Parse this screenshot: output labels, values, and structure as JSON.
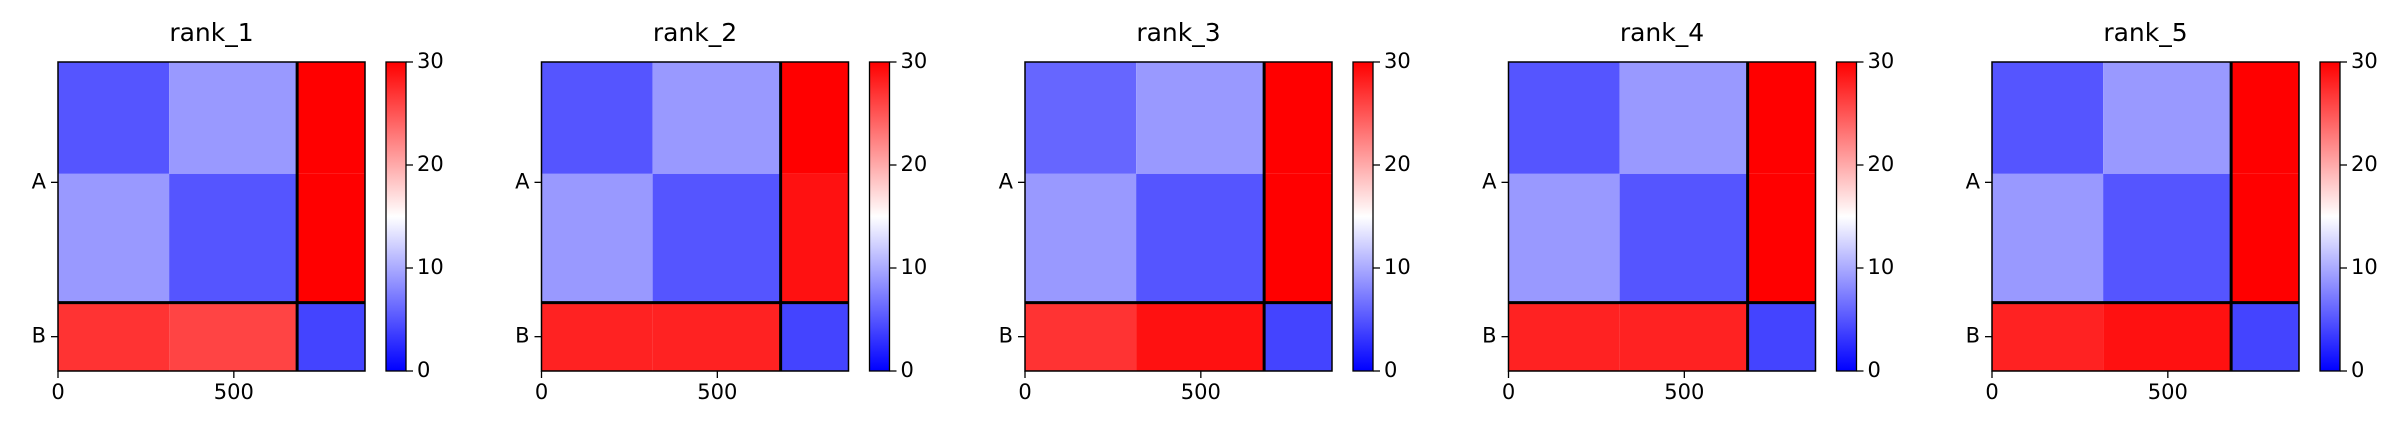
{
  "chart_data": [
    {
      "type": "heatmap",
      "title": "rank_1",
      "x_edges": [
        0,
        316,
        680,
        873
      ],
      "matrix": [
        [
          5,
          9,
          30
        ],
        [
          9,
          5,
          30
        ],
        [
          27,
          26,
          4
        ]
      ],
      "chain_breaks": [
        680
      ],
      "xlim": [
        0,
        873
      ],
      "ylim": [
        873,
        0
      ],
      "xticks": [
        0,
        500
      ],
      "yticks": [
        {
          "value": 340,
          "label": "A"
        },
        {
          "value": 776,
          "label": "B"
        }
      ],
      "clim": [
        0,
        30
      ],
      "cticks": [
        0,
        10,
        20,
        30
      ],
      "colormap": [
        "#0000ff",
        "#ffffff",
        "#ff0000"
      ]
    },
    {
      "type": "heatmap",
      "title": "rank_2",
      "x_edges": [
        0,
        316,
        680,
        873
      ],
      "matrix": [
        [
          5,
          9,
          30
        ],
        [
          9,
          5,
          29
        ],
        [
          28,
          28,
          4
        ]
      ],
      "chain_breaks": [
        680
      ],
      "xlim": [
        0,
        873
      ],
      "ylim": [
        873,
        0
      ],
      "xticks": [
        0,
        500
      ],
      "yticks": [
        {
          "value": 340,
          "label": "A"
        },
        {
          "value": 776,
          "label": "B"
        }
      ],
      "clim": [
        0,
        30
      ],
      "cticks": [
        0,
        10,
        20,
        30
      ],
      "colormap": [
        "#0000ff",
        "#ffffff",
        "#ff0000"
      ]
    },
    {
      "type": "heatmap",
      "title": "rank_3",
      "x_edges": [
        0,
        316,
        680,
        873
      ],
      "matrix": [
        [
          6,
          9,
          30
        ],
        [
          9,
          5,
          30
        ],
        [
          27,
          29,
          4
        ]
      ],
      "chain_breaks": [
        680
      ],
      "xlim": [
        0,
        873
      ],
      "ylim": [
        873,
        0
      ],
      "xticks": [
        0,
        500
      ],
      "yticks": [
        {
          "value": 340,
          "label": "A"
        },
        {
          "value": 776,
          "label": "B"
        }
      ],
      "clim": [
        0,
        30
      ],
      "cticks": [
        0,
        10,
        20,
        30
      ],
      "colormap": [
        "#0000ff",
        "#ffffff",
        "#ff0000"
      ]
    },
    {
      "type": "heatmap",
      "title": "rank_4",
      "x_edges": [
        0,
        316,
        680,
        873
      ],
      "matrix": [
        [
          5,
          9,
          30
        ],
        [
          9,
          5,
          30
        ],
        [
          28,
          28,
          4
        ]
      ],
      "chain_breaks": [
        680
      ],
      "xlim": [
        0,
        873
      ],
      "ylim": [
        873,
        0
      ],
      "xticks": [
        0,
        500
      ],
      "yticks": [
        {
          "value": 340,
          "label": "A"
        },
        {
          "value": 776,
          "label": "B"
        }
      ],
      "clim": [
        0,
        30
      ],
      "cticks": [
        0,
        10,
        20,
        30
      ],
      "colormap": [
        "#0000ff",
        "#ffffff",
        "#ff0000"
      ]
    },
    {
      "type": "heatmap",
      "title": "rank_5",
      "x_edges": [
        0,
        316,
        680,
        873
      ],
      "matrix": [
        [
          5,
          9,
          30
        ],
        [
          9,
          5,
          30
        ],
        [
          28,
          29,
          4
        ]
      ],
      "chain_breaks": [
        680
      ],
      "xlim": [
        0,
        873
      ],
      "ylim": [
        873,
        0
      ],
      "xticks": [
        0,
        500
      ],
      "yticks": [
        {
          "value": 340,
          "label": "A"
        },
        {
          "value": 776,
          "label": "B"
        }
      ],
      "clim": [
        0,
        30
      ],
      "cticks": [
        0,
        10,
        20,
        30
      ],
      "colormap": [
        "#0000ff",
        "#ffffff",
        "#ff0000"
      ]
    }
  ]
}
